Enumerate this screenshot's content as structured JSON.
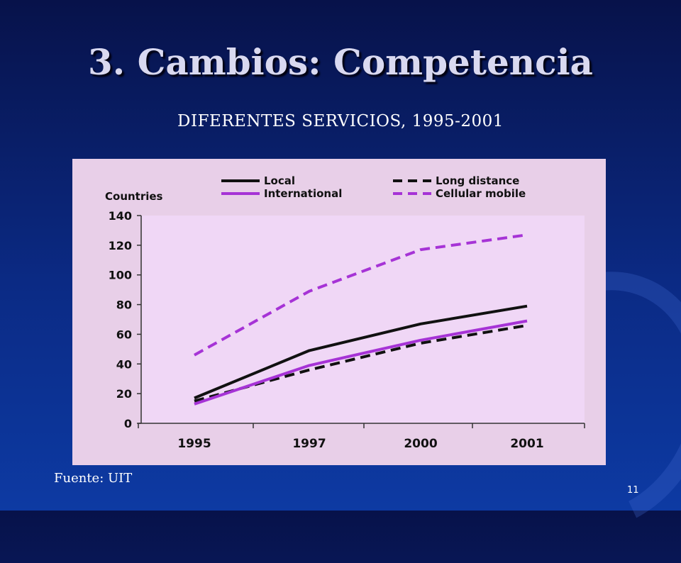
{
  "slide": {
    "title": "3. Cambios: Competencia",
    "subtitle": "DIFERENTES SERVICIOS, 1995-2001",
    "source": "Fuente: UIT",
    "page_number": "11"
  },
  "chart_data": {
    "type": "line",
    "title": "",
    "ylabel": "Countries",
    "xlabel": "",
    "categories": [
      "1995",
      "1997",
      "2000",
      "2001"
    ],
    "ylim": [
      0,
      140
    ],
    "yticks": [
      0,
      20,
      40,
      60,
      80,
      100,
      120,
      140
    ],
    "legend_placement": "top",
    "series": [
      {
        "name": "Local",
        "values": [
          17,
          49,
          67,
          79
        ],
        "color": "#111111",
        "dashed": false
      },
      {
        "name": "Long distance",
        "values": [
          15,
          36,
          54,
          66
        ],
        "color": "#111111",
        "dashed": true
      },
      {
        "name": "International",
        "values": [
          13,
          39,
          56,
          69
        ],
        "color": "#a633d6",
        "dashed": false
      },
      {
        "name": "Cellular mobile",
        "values": [
          46,
          89,
          117,
          127
        ],
        "color": "#a633d6",
        "dashed": true
      }
    ],
    "plot_background": "#f0d7f6",
    "frame_background": "#e8cfe8"
  }
}
